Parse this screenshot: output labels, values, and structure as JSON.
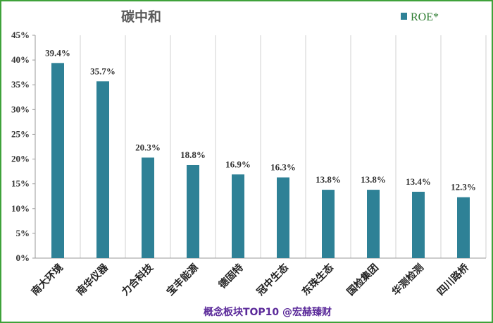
{
  "chart_data": {
    "type": "bar",
    "title": "碳中和",
    "legend": [
      "ROE*"
    ],
    "legend_position": "top-right",
    "categories": [
      "南大环境",
      "南华仪器",
      "力合科技",
      "宝丰能源",
      "德固特",
      "冠中生态",
      "东珠生态",
      "国检集团",
      "华测检测",
      "四川路桥"
    ],
    "series": [
      {
        "name": "ROE*",
        "values": [
          39.4,
          35.7,
          20.3,
          18.8,
          16.9,
          16.3,
          13.8,
          13.8,
          13.4,
          12.3
        ]
      }
    ],
    "data_labels": [
      "39.4%",
      "35.7%",
      "20.3%",
      "18.8%",
      "16.9%",
      "16.3%",
      "13.8%",
      "13.8%",
      "13.4%",
      "12.3%"
    ],
    "yticks": [
      "0%",
      "5%",
      "10%",
      "15%",
      "20%",
      "25%",
      "30%",
      "35%",
      "40%",
      "45%"
    ],
    "ylim": [
      0,
      45
    ],
    "grid": "vertical",
    "colors": {
      "bar": "#2e8196",
      "grid": "#d0d0d0",
      "axis": "#9a9a9a",
      "border": "#3fa23a",
      "footer": "#5b2a9a"
    }
  },
  "footer": "概念板块TOP10  @宏赫臻财"
}
